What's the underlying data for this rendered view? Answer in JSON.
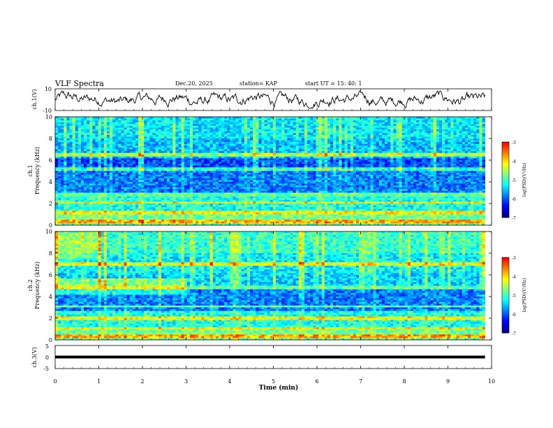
{
  "header": {
    "title": "VLF Spectra",
    "date": "Dec.20, 2025",
    "station": "station= KAP",
    "start_time": "start  UT =   15: 40: 1"
  },
  "colors": {
    "background": "#ffffff",
    "trace": "#000000",
    "colormap": [
      "#00008f",
      "#0000ff",
      "#0080ff",
      "#00ffff",
      "#80ff80",
      "#ffff00",
      "#ff8000",
      "#ff0000",
      "#ffffff"
    ]
  },
  "chart_data": [
    {
      "type": "line",
      "id": "ch1-waveform",
      "title": "VLF Spectra",
      "ylabel": "ch.1(V)",
      "ylim": [
        -10,
        10
      ],
      "yticks": [
        "10",
        "-10"
      ],
      "x_range_min": [
        0,
        9.85
      ],
      "grid": false
    },
    {
      "type": "heatmap",
      "id": "ch1-spectrogram",
      "ylabel": "ch.1\nFrequency (kHz)",
      "ylim": [
        0,
        10
      ],
      "yticks": [
        "0",
        "2",
        "4",
        "6",
        "8",
        "10"
      ],
      "x_range_min": [
        0,
        9.85
      ],
      "colorbar": {
        "label": "log(PSD)(V²/Hz)",
        "range": [
          -7,
          -3
        ],
        "ticks": [
          "-3",
          "-4",
          "-5",
          "-6",
          "-7"
        ]
      },
      "features": [
        {
          "kind": "interference line",
          "freq_khz": 0.3
        },
        {
          "kind": "interference line",
          "freq_khz": 1.2
        },
        {
          "kind": "interference line",
          "freq_khz": 2.1
        },
        {
          "kind": "interference line",
          "freq_khz": 2.8
        },
        {
          "kind": "interference line",
          "freq_khz": 5.2
        },
        {
          "kind": "interference line",
          "freq_khz": 6.5
        }
      ]
    },
    {
      "type": "heatmap",
      "id": "ch2-spectrogram",
      "ylabel": "ch.2\nFrequency (kHz)",
      "ylim": [
        0,
        10
      ],
      "yticks": [
        "0",
        "2",
        "4",
        "6",
        "8",
        "10"
      ],
      "x_range_min": [
        0,
        9.85
      ],
      "colorbar": {
        "label": "log(PSD)(V²/Hz)",
        "range": [
          -7,
          -3
        ],
        "ticks": [
          "-3",
          "-4",
          "-5",
          "-6",
          "-7"
        ]
      },
      "features": [
        {
          "kind": "interference line",
          "freq_khz": 0.3
        },
        {
          "kind": "interference line",
          "freq_khz": 1.1
        },
        {
          "kind": "interference line",
          "freq_khz": 2.0
        },
        {
          "kind": "interference line",
          "freq_khz": 3.1
        },
        {
          "kind": "interference line",
          "freq_khz": 4.8
        },
        {
          "kind": "interference line",
          "freq_khz": 7.0
        }
      ]
    },
    {
      "type": "line",
      "id": "ch3-waveform",
      "ylabel": "ch.3(V)",
      "ylim": [
        -5,
        5
      ],
      "yticks": [
        "5",
        "0",
        "-5"
      ],
      "x_range_min": [
        0,
        9.85
      ],
      "level_v": [
        -0.6,
        0.6
      ]
    }
  ],
  "x_axis": {
    "label": "Time  (min)",
    "range": [
      0,
      10
    ],
    "ticks": [
      "0",
      "1",
      "2",
      "3",
      "4",
      "5",
      "6",
      "7",
      "8",
      "9",
      "10"
    ]
  }
}
